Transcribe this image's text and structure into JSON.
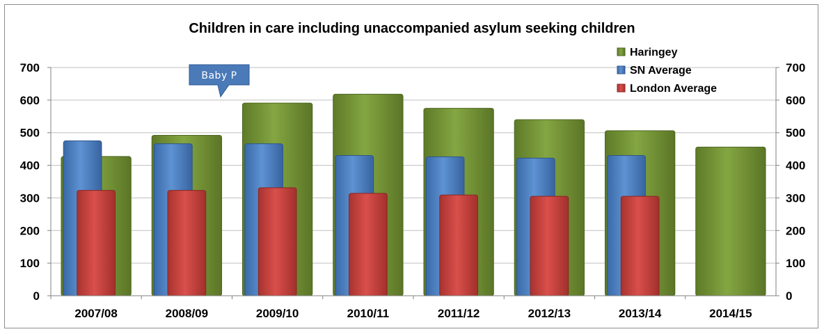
{
  "chart_data": {
    "type": "bar",
    "title": "Children in care including unaccompanied asylum seeking children",
    "categories": [
      "2007/08",
      "2008/09",
      "2009/10",
      "2010/11",
      "2011/12",
      "2012/13",
      "2013/14",
      "2014/15"
    ],
    "series": [
      {
        "name": "Haringey",
        "color": "#77963a",
        "values": [
          427,
          492,
          591,
          618,
          575,
          540,
          506,
          456
        ]
      },
      {
        "name": "SN Average",
        "color": "#4f81bd",
        "values": [
          475,
          466,
          466,
          430,
          426,
          422,
          430,
          null
        ]
      },
      {
        "name": "London Average",
        "color": "#c0504d",
        "values": [
          323,
          323,
          331,
          314,
          309,
          305,
          305,
          null
        ]
      }
    ],
    "ylim": [
      0,
      700
    ],
    "yticks": [
      0,
      100,
      200,
      300,
      400,
      500,
      600,
      700
    ],
    "secondary_axis": true,
    "grid": true,
    "legend_position": "top-right",
    "annotation": {
      "text": "Baby P",
      "category": "2008/09"
    }
  }
}
